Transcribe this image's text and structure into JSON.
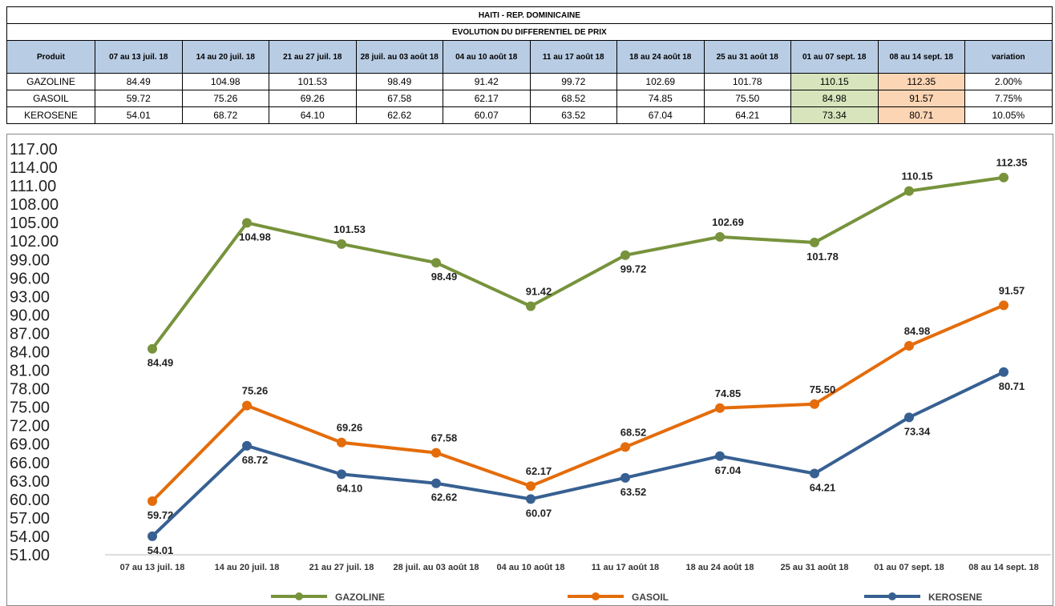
{
  "table": {
    "title": "HAITI  - REP. DOMINICAINE",
    "subtitle": "EVOLUTION DU DIFFERENTIEL DE PRIX",
    "header": [
      "Produit",
      "07 au 13 juil. 18",
      "14 au 20 juil. 18",
      "21 au 27 juil. 18",
      "28 juil. au 03 août 18",
      "04 au 10 août 18",
      "11 au 17 août 18",
      "18 au 24 août 18",
      "25 au 31 août 18",
      "01 au 07 sept. 18",
      "08 au 14 sept. 18",
      "variation"
    ],
    "rows": [
      [
        "GAZOLINE",
        "84.49",
        "104.98",
        "101.53",
        "98.49",
        "91.42",
        "99.72",
        "102.69",
        "101.78",
        "110.15",
        "112.35",
        "2.00%"
      ],
      [
        "GASOIL",
        "59.72",
        "75.26",
        "69.26",
        "67.58",
        "62.17",
        "68.52",
        "74.85",
        "75.50",
        "84.98",
        "91.57",
        "7.75%"
      ],
      [
        "KEROSENE",
        "54.01",
        "68.72",
        "64.10",
        "62.62",
        "60.07",
        "63.52",
        "67.04",
        "64.21",
        "73.34",
        "80.71",
        "10.05%"
      ]
    ]
  },
  "chart_data": {
    "type": "line",
    "categories": [
      "07 au 13 juil. 18",
      "14 au 20 juil. 18",
      "21 au 27 juil. 18",
      "28 juil. au 03 août 18",
      "04 au 10 août 18",
      "11 au 17 août 18",
      "18 au 24 août 18",
      "25 au 31 août 18",
      "01 au 07 sept. 18",
      "08 au 14 sept. 18"
    ],
    "series": [
      {
        "name": "GAZOLINE",
        "color": "#77933c",
        "values": [
          84.49,
          104.98,
          101.53,
          98.49,
          91.42,
          99.72,
          102.69,
          101.78,
          110.15,
          112.35
        ],
        "value_labels": [
          "84.49",
          "104.98",
          "101.53",
          "98.49",
          "91.42",
          "99.72",
          "102.69",
          "101.78",
          "110.15",
          "112.35"
        ]
      },
      {
        "name": "GASOIL",
        "color": "#e46c0a",
        "values": [
          59.72,
          75.26,
          69.26,
          67.58,
          62.17,
          68.52,
          74.85,
          75.5,
          84.98,
          91.57
        ],
        "value_labels": [
          "59.72",
          "75.26",
          "69.26",
          "67.58",
          "62.17",
          "68.52",
          "74.85",
          "75.50",
          "84.98",
          "91.57"
        ]
      },
      {
        "name": "KEROSENE",
        "color": "#376092",
        "values": [
          54.01,
          68.72,
          64.1,
          62.62,
          60.07,
          63.52,
          67.04,
          64.21,
          73.34,
          80.71
        ],
        "value_labels": [
          "54.01",
          "68.72",
          "64.10",
          "62.62",
          "60.07",
          "63.52",
          "67.04",
          "64.21",
          "73.34",
          "80.71"
        ]
      }
    ],
    "ylim": [
      51,
      117
    ],
    "yticks": [
      {
        "value": 51,
        "label": "51.00"
      },
      {
        "value": 54,
        "label": "54.00"
      },
      {
        "value": 57,
        "label": "57.00"
      },
      {
        "value": 60,
        "label": "60.00"
      },
      {
        "value": 63,
        "label": "63.00"
      },
      {
        "value": 66,
        "label": "66.00"
      },
      {
        "value": 69,
        "label": "69.00"
      },
      {
        "value": 72,
        "label": "72.00"
      },
      {
        "value": 75,
        "label": "75.00"
      },
      {
        "value": 78,
        "label": "78.00"
      },
      {
        "value": 81,
        "label": "81.00"
      },
      {
        "value": 84,
        "label": "84.00"
      },
      {
        "value": 87,
        "label": "87.00"
      },
      {
        "value": 90,
        "label": "90.00"
      },
      {
        "value": 93,
        "label": "93.00"
      },
      {
        "value": 96,
        "label": "96.00"
      },
      {
        "value": 99,
        "label": "99.00"
      },
      {
        "value": 102,
        "label": "102.00"
      },
      {
        "value": 105,
        "label": "105.00"
      },
      {
        "value": 108,
        "label": "108.00"
      },
      {
        "value": 111,
        "label": "111.00"
      },
      {
        "value": 114,
        "label": "114.00"
      },
      {
        "value": 117,
        "label": "117.00"
      }
    ],
    "grid": false,
    "legend": "bottom"
  }
}
